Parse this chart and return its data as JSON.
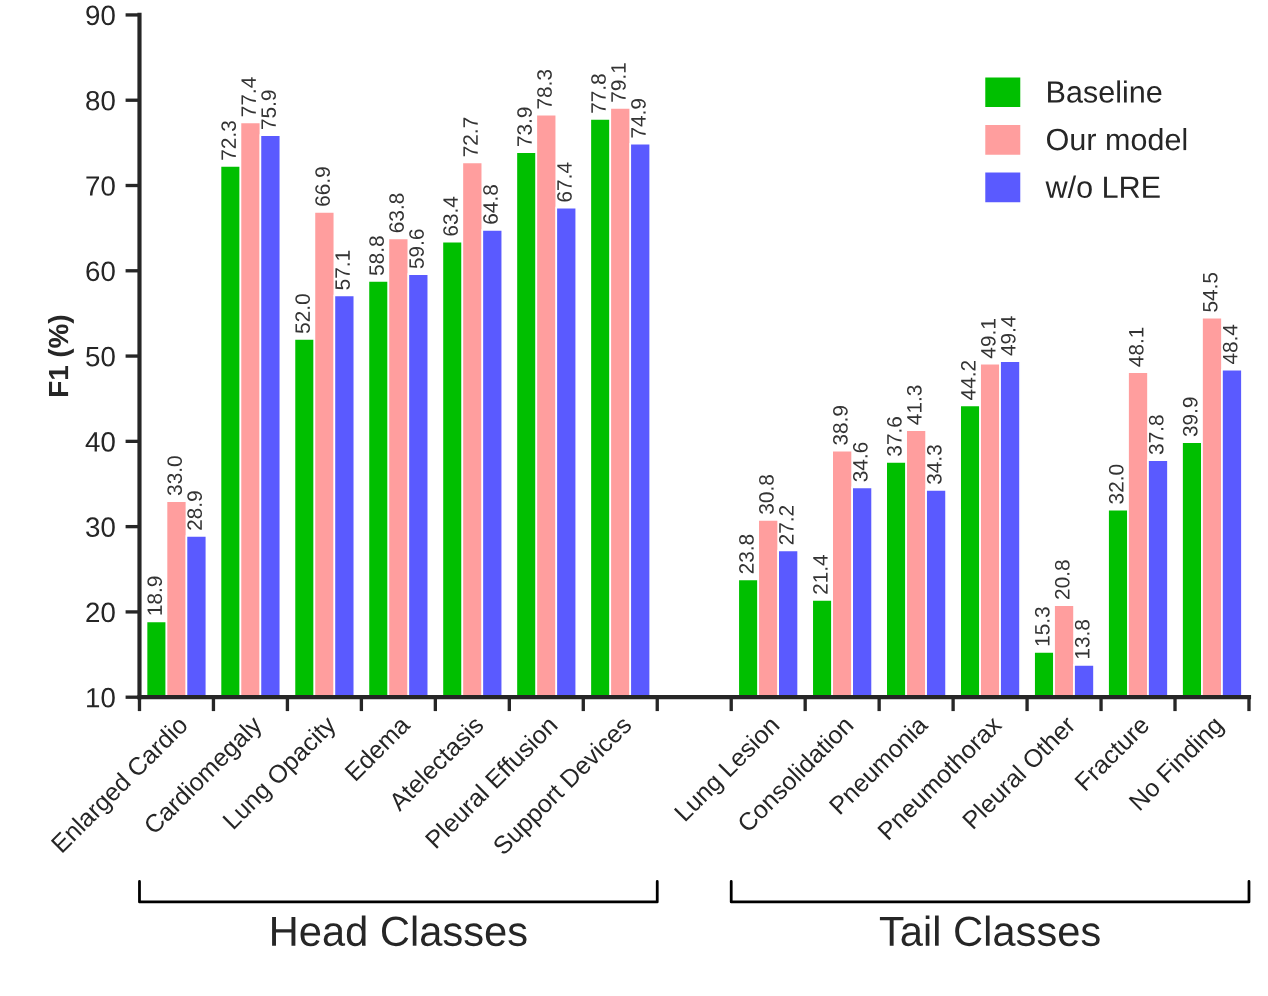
{
  "chart_data": {
    "type": "bar",
    "ylabel": "F1 (%)",
    "categories": [
      "Enlarged Cardio",
      "Cardiomegaly",
      "Lung Opacity",
      "Edema",
      "Atelectasis",
      "Pleural Effusion",
      "Support Devices",
      null,
      "Lung Lesion",
      "Consolidation",
      "Pneumonia",
      "Pneumothorax",
      "Pleural Other",
      "Fracture",
      "No Finding"
    ],
    "series": [
      {
        "name": "Baseline",
        "color": "#00bf00",
        "values": [
          18.9,
          72.3,
          52.0,
          58.8,
          63.4,
          73.9,
          77.8,
          null,
          23.8,
          21.4,
          37.6,
          44.2,
          15.3,
          32.0,
          39.9
        ],
        "value_labels": [
          "18.9",
          "72.3",
          "52.0",
          "58.8",
          "63.4",
          "73.9",
          "77.8",
          null,
          "23.8",
          "21.4",
          "37.6",
          "44.2",
          "15.3",
          "32.0",
          "39.9"
        ]
      },
      {
        "name": "Our model",
        "color": "#ff9e9e",
        "values": [
          33.0,
          77.4,
          66.9,
          63.8,
          72.7,
          78.3,
          79.1,
          null,
          30.8,
          38.9,
          41.3,
          49.1,
          20.8,
          48.1,
          54.5
        ],
        "value_labels": [
          "33.0",
          "77.4",
          "66.9",
          "63.8",
          "72.7",
          "78.3",
          "79.1",
          null,
          "30.8",
          "38.9",
          "41.3",
          "49.1",
          "20.8",
          "48.1",
          "54.5"
        ]
      },
      {
        "name": "w/o LRE",
        "color": "#5a5aff",
        "values": [
          28.9,
          75.9,
          57.1,
          59.6,
          64.8,
          67.4,
          74.9,
          null,
          27.2,
          34.6,
          34.3,
          49.4,
          13.8,
          37.8,
          48.4
        ],
        "value_labels": [
          "28.9",
          "75.9",
          "57.1",
          "59.6",
          "64.8",
          "67.4",
          "74.9",
          null,
          "27.2",
          "34.6",
          "34.3",
          "49.4",
          "13.8",
          "37.8",
          "48.4"
        ]
      }
    ],
    "ylim": [
      10,
      90
    ],
    "yticks": [
      10,
      20,
      30,
      40,
      50,
      60,
      70,
      80,
      90
    ],
    "grid": false,
    "legend": "top right",
    "annotations": [
      "Head Classes",
      "Tail Classes"
    ]
  }
}
